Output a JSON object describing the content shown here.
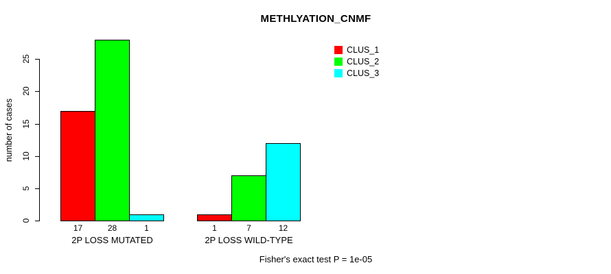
{
  "chart_data": {
    "type": "bar",
    "title": "METHLYATION_CNMF",
    "ylabel": "number of cases",
    "xlabel": "",
    "categories": [
      "2P LOSS MUTATED",
      "2P LOSS WILD-TYPE"
    ],
    "series": [
      {
        "name": "CLUS_1",
        "color": "#FF0000",
        "values": [
          17,
          1
        ]
      },
      {
        "name": "CLUS_2",
        "color": "#00FF00",
        "values": [
          28,
          7
        ]
      },
      {
        "name": "CLUS_3",
        "color": "#00FFFF",
        "values": [
          1,
          12
        ]
      }
    ],
    "bar_value_labels": [
      [
        17,
        28,
        1
      ],
      [
        1,
        7,
        12
      ]
    ],
    "yticks": [
      0,
      5,
      10,
      15,
      20,
      25
    ],
    "ylim": [
      0,
      28
    ],
    "grid": false,
    "legend_position": "top-right-inside",
    "annotation": "Fisher's exact test P = 1e-05"
  }
}
